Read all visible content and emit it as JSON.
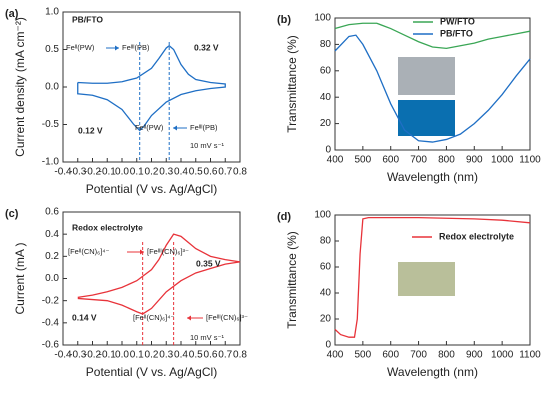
{
  "chart_data": [
    {
      "type": "line",
      "panel_label": "(a)",
      "xlabel": "Potential (V vs. Ag/AgCl)",
      "ylabel": "Current density (mA cm⁻²)",
      "xlim": [
        -0.4,
        0.8
      ],
      "xticks": [
        -0.4,
        -0.3,
        -0.2,
        -0.1,
        {
          "value": 0,
          "label": "0.0"
        },
        0.1,
        0.2,
        0.3,
        0.4,
        0.5,
        0.6,
        0.7,
        0.8
      ],
      "ylim": [
        -1,
        1
      ],
      "yticks": [
        {
          "value": -1,
          "label": "-1.0"
        },
        -0.5,
        {
          "value": 0,
          "label": "0.0"
        },
        0.5,
        {
          "value": 1,
          "label": "1.0"
        }
      ],
      "series": [
        {
          "color": "#1f6fc5",
          "x": [
            -0.3,
            -0.2,
            -0.1,
            0,
            0.1,
            0.2,
            0.25,
            0.3,
            0.32,
            0.35,
            0.4,
            0.45,
            0.5,
            0.6,
            0.7,
            0.7,
            0.6,
            0.5,
            0.4,
            0.3,
            0.2,
            0.15,
            0.12,
            0.08,
            0,
            -0.1,
            -0.2,
            -0.3,
            -0.3
          ],
          "values": [
            0.06,
            0.05,
            0.05,
            0.07,
            0.12,
            0.25,
            0.38,
            0.52,
            0.55,
            0.5,
            0.3,
            0.17,
            0.1,
            0.06,
            0.04,
            0.0,
            -0.02,
            -0.05,
            -0.1,
            -0.2,
            -0.38,
            -0.52,
            -0.58,
            -0.5,
            -0.3,
            -0.17,
            -0.11,
            -0.09,
            0.06
          ]
        }
      ],
      "markers": [
        {
          "value": 0.32,
          "label": "0.32 V"
        },
        {
          "value": 0.12,
          "label": "0.12 V"
        }
      ],
      "annotations": [
        "PB/FTO",
        "Feᴵᴵ(PW)",
        "Feᴵᴵᴵ(PB)",
        "Feᴵᴵ(PW)",
        "Feᴵᴵᴵ(PB)",
        "10 mV s⁻¹"
      ]
    },
    {
      "type": "line",
      "panel_label": "(b)",
      "xlabel": "Wavelength (nm)",
      "ylabel": "Transmittance (%)",
      "xlim": [
        400,
        1100
      ],
      "xticks": [
        400,
        500,
        600,
        700,
        800,
        900,
        1000,
        1100
      ],
      "ylim": [
        0,
        100
      ],
      "yticks": [
        0,
        20,
        40,
        60,
        80,
        100
      ],
      "series": [
        {
          "name": "PW/FTO",
          "color": "#3aa655",
          "x": [
            400,
            450,
            500,
            550,
            600,
            650,
            700,
            750,
            800,
            850,
            900,
            950,
            1000,
            1050,
            1100
          ],
          "values": [
            92,
            95,
            96,
            96,
            92,
            87,
            82,
            78,
            77,
            79,
            81,
            84,
            86,
            88,
            90
          ]
        },
        {
          "name": "PB/FTO",
          "color": "#1f6fc5",
          "x": [
            400,
            450,
            475,
            500,
            550,
            600,
            650,
            700,
            750,
            800,
            850,
            900,
            950,
            1000,
            1050,
            1100
          ],
          "values": [
            75,
            86,
            87,
            80,
            60,
            35,
            15,
            7,
            6,
            8,
            12,
            20,
            30,
            42,
            56,
            69
          ]
        }
      ]
    },
    {
      "type": "line",
      "panel_label": "(c)",
      "xlabel": "Potential (V vs. Ag/AgCl)",
      "ylabel": "Current (mA )",
      "xlim": [
        -0.4,
        0.8
      ],
      "xticks": [
        -0.4,
        -0.3,
        -0.2,
        -0.1,
        {
          "value": 0,
          "label": "0.0"
        },
        0.1,
        0.2,
        0.3,
        0.4,
        0.5,
        0.6,
        0.7,
        0.8
      ],
      "ylim": [
        -0.6,
        0.6
      ],
      "yticks": [
        -0.6,
        -0.4,
        -0.2,
        {
          "value": 0,
          "label": "0.0"
        },
        0.2,
        0.4,
        0.6
      ],
      "series": [
        {
          "color": "#e8333a",
          "x": [
            -0.3,
            -0.2,
            -0.1,
            0,
            0.1,
            0.2,
            0.25,
            0.3,
            0.35,
            0.4,
            0.5,
            0.6,
            0.7,
            0.8,
            0.7,
            0.6,
            0.5,
            0.4,
            0.3,
            0.2,
            0.14,
            0.1,
            0,
            -0.1,
            -0.2,
            -0.3
          ],
          "values": [
            -0.17,
            -0.15,
            -0.12,
            -0.08,
            -0.02,
            0.08,
            0.17,
            0.3,
            0.4,
            0.38,
            0.27,
            0.2,
            0.17,
            0.15,
            0.13,
            0.09,
            0.05,
            -0.02,
            -0.12,
            -0.27,
            -0.32,
            -0.3,
            -0.24,
            -0.2,
            -0.19,
            -0.18
          ]
        }
      ],
      "markers": [
        {
          "value": 0.35,
          "label": "0.35 V"
        },
        {
          "value": 0.14,
          "label": "0.14 V"
        }
      ],
      "annotations": [
        "Redox electrolyte",
        "[Feᴵᴵ(CN)₆]⁴⁻",
        "[Feᴵᴵᴵ(CN)₆]³⁻",
        "[Feᴵᴵ(CN)₆]⁴⁻",
        "[Feᴵᴵᴵ(CN)₆]³⁻",
        "10 mV s⁻¹"
      ]
    },
    {
      "type": "line",
      "panel_label": "(d)",
      "xlabel": "Wavelength (nm)",
      "ylabel": "Transmittance (%)",
      "xlim": [
        400,
        1100
      ],
      "xticks": [
        400,
        500,
        600,
        700,
        800,
        900,
        1000,
        1100
      ],
      "ylim": [
        0,
        100
      ],
      "yticks": [
        0,
        20,
        40,
        60,
        80,
        100
      ],
      "series": [
        {
          "name": "Redox electrolyte",
          "color": "#e8333a",
          "x": [
            400,
            420,
            450,
            470,
            480,
            490,
            500,
            520,
            600,
            700,
            800,
            900,
            1000,
            1100
          ],
          "values": [
            12,
            8,
            6,
            6,
            20,
            70,
            97,
            98,
            98,
            98,
            97.5,
            97,
            96,
            94
          ]
        }
      ]
    }
  ]
}
